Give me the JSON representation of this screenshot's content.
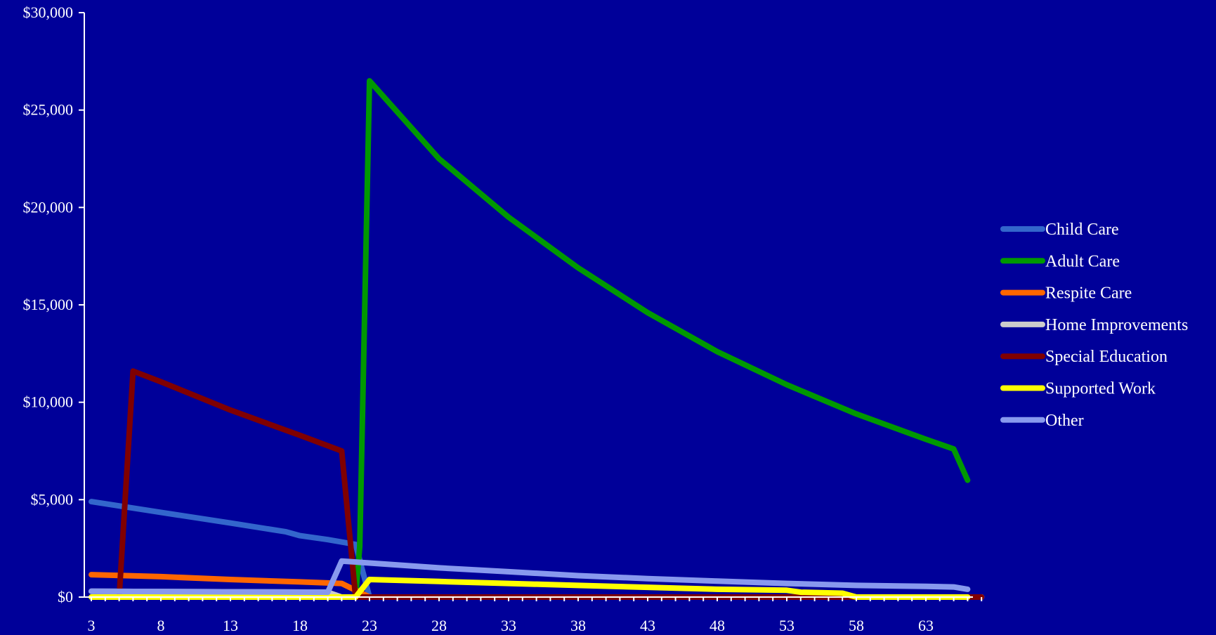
{
  "chart_data": {
    "type": "line",
    "title": "",
    "xlabel": "",
    "ylabel": "",
    "xlim": [
      3,
      67
    ],
    "ylim": [
      0,
      30000
    ],
    "x_ticks": [
      3,
      8,
      13,
      18,
      23,
      28,
      33,
      38,
      43,
      48,
      53,
      58,
      63
    ],
    "y_ticks": [
      {
        "value": 0,
        "label": "$0"
      },
      {
        "value": 5000,
        "label": "$5,000"
      },
      {
        "value": 10000,
        "label": "$10,000"
      },
      {
        "value": 15000,
        "label": "$15,000"
      },
      {
        "value": 20000,
        "label": "$20,000"
      },
      {
        "value": 25000,
        "label": "$25,000"
      },
      {
        "value": 30000,
        "label": "$30,000"
      }
    ],
    "grid": false,
    "legend_position": "right",
    "background_color": "#000099",
    "axis_color": "#ffffff",
    "series": [
      {
        "name": "Child Care",
        "color": "#3366cc",
        "points": [
          [
            3,
            4900
          ],
          [
            8,
            4350
          ],
          [
            13,
            3800
          ],
          [
            17,
            3350
          ],
          [
            18,
            3150
          ],
          [
            20,
            2950
          ],
          [
            22,
            2700
          ],
          [
            23,
            0
          ],
          [
            67,
            0
          ]
        ]
      },
      {
        "name": "Adult Care",
        "color": "#009900",
        "points": [
          [
            3,
            0
          ],
          [
            22,
            0
          ],
          [
            22.3,
            2600
          ],
          [
            23,
            26500
          ],
          [
            28,
            22500
          ],
          [
            33,
            19500
          ],
          [
            38,
            16900
          ],
          [
            43,
            14600
          ],
          [
            48,
            12600
          ],
          [
            53,
            10900
          ],
          [
            58,
            9400
          ],
          [
            63,
            8100
          ],
          [
            65,
            7600
          ],
          [
            66,
            6000
          ]
        ]
      },
      {
        "name": "Respite Care",
        "color": "#ff6600",
        "points": [
          [
            3,
            1150
          ],
          [
            8,
            1050
          ],
          [
            13,
            900
          ],
          [
            18,
            780
          ],
          [
            21,
            700
          ],
          [
            23,
            0
          ],
          [
            67,
            0
          ]
        ]
      },
      {
        "name": "Home Improvements",
        "color": "#cccccc",
        "points": [
          [
            3,
            300
          ],
          [
            20,
            250
          ],
          [
            21,
            0
          ],
          [
            67,
            0
          ]
        ]
      },
      {
        "name": "Special Education",
        "color": "#800000",
        "points": [
          [
            3,
            0
          ],
          [
            5,
            0
          ],
          [
            6,
            11600
          ],
          [
            8,
            11050
          ],
          [
            13,
            9600
          ],
          [
            18,
            8300
          ],
          [
            21,
            7500
          ],
          [
            22,
            0
          ],
          [
            67,
            0
          ]
        ]
      },
      {
        "name": "Supported Work",
        "color": "#ffff00",
        "points": [
          [
            3,
            0
          ],
          [
            21,
            0
          ],
          [
            22,
            0
          ],
          [
            23,
            900
          ],
          [
            28,
            800
          ],
          [
            33,
            700
          ],
          [
            38,
            600
          ],
          [
            43,
            500
          ],
          [
            48,
            400
          ],
          [
            53,
            350
          ],
          [
            54,
            250
          ],
          [
            57,
            200
          ],
          [
            58,
            0
          ],
          [
            66,
            0
          ]
        ]
      },
      {
        "name": "Other",
        "color": "#8899ee",
        "points": [
          [
            3,
            300
          ],
          [
            20,
            250
          ],
          [
            21,
            1850
          ],
          [
            23,
            1750
          ],
          [
            28,
            1500
          ],
          [
            33,
            1300
          ],
          [
            38,
            1100
          ],
          [
            43,
            950
          ],
          [
            48,
            820
          ],
          [
            53,
            700
          ],
          [
            58,
            600
          ],
          [
            63,
            550
          ],
          [
            65,
            520
          ],
          [
            66,
            400
          ]
        ]
      }
    ]
  }
}
